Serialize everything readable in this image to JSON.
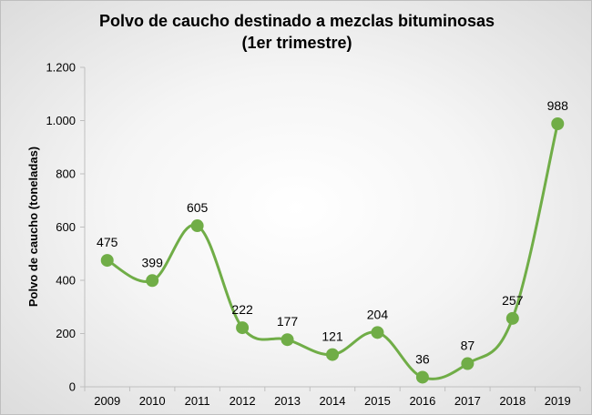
{
  "chart_data": {
    "type": "line",
    "title": "Polvo de caucho destinado a mezclas bituminosas",
    "subtitle": "(1er trimestre)",
    "ylabel": "Polvo de caucho  (toneladas)",
    "xlabel": "",
    "categories": [
      "2009",
      "2010",
      "2011",
      "2012",
      "2013",
      "2014",
      "2015",
      "2016",
      "2017",
      "2018",
      "2019"
    ],
    "series": [
      {
        "values": [
          475,
          399,
          605,
          222,
          177,
          121,
          204,
          36,
          87,
          257,
          988
        ],
        "labels": [
          "475",
          "399",
          "605",
          "222",
          "177",
          "121",
          "204",
          "36",
          "87",
          "257",
          "988"
        ],
        "color": "#70ad47"
      }
    ],
    "ylim": [
      0,
      1200
    ],
    "yticks": [
      0,
      200,
      400,
      600,
      800,
      1000,
      1200
    ],
    "ytick_labels": [
      "0",
      "200",
      "400",
      "600",
      "800",
      "1.000",
      "1.200"
    ],
    "grid": false,
    "legend": "none",
    "background": "#f0f0f0"
  }
}
